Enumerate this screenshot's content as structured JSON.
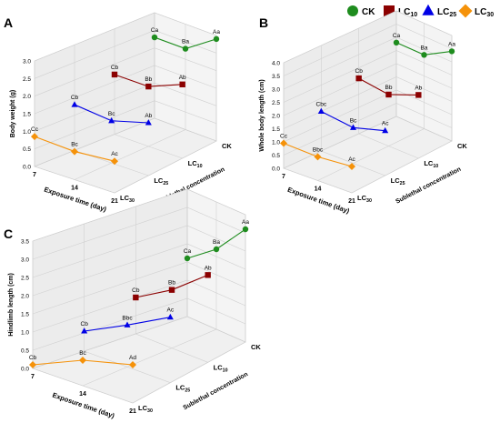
{
  "legend": {
    "items": [
      {
        "label": "CK",
        "color": "#1e8c1e",
        "marker": "circle"
      },
      {
        "label": "LC10",
        "color": "#8b0000",
        "marker": "square"
      },
      {
        "label": "LC25",
        "color": "#0000e6",
        "marker": "triangle"
      },
      {
        "label": "LC30",
        "color": "#f5920a",
        "marker": "diamond"
      }
    ]
  },
  "chart_data": [
    {
      "type": "line",
      "panel_label": "A",
      "title": "",
      "xlabel": "Exposure time (day)",
      "ylabel": "Body weight (g)",
      "depth_label": "Sublethal concentration",
      "x": [
        "7",
        "14",
        "21"
      ],
      "depth_categories": [
        "CK",
        "LC10",
        "LC25",
        "LC30"
      ],
      "ylim": [
        0,
        3.0
      ],
      "yticks": [
        "0.0",
        "0.5",
        "1.0",
        "1.5",
        "2.0",
        "2.5",
        "3.0"
      ],
      "series": [
        {
          "name": "CK",
          "values": [
            2.3,
            2.3,
            2.9
          ],
          "labels": [
            "Ca",
            "Ba",
            "Aa"
          ]
        },
        {
          "name": "LC10",
          "values": [
            1.7,
            1.7,
            2.1
          ],
          "labels": [
            "Cb",
            "Bb",
            "Ab"
          ]
        },
        {
          "name": "LC25",
          "values": [
            1.3,
            1.2,
            1.5
          ],
          "labels": [
            "Cb",
            "Bc",
            "Ab"
          ]
        },
        {
          "name": "LC30",
          "values": [
            0.85,
            0.8,
            0.9
          ],
          "labels": [
            "Cc",
            "Bc",
            "Ac"
          ]
        }
      ]
    },
    {
      "type": "line",
      "panel_label": "B",
      "title": "",
      "xlabel": "Exposure time (day)",
      "ylabel": "Whole body length (cm)",
      "depth_label": "Sublethal concentration",
      "x": [
        "7",
        "14",
        "21"
      ],
      "depth_categories": [
        "CK",
        "LC10",
        "LC25",
        "LC30"
      ],
      "ylim": [
        0,
        4.0
      ],
      "yticks": [
        "0.0",
        "0.5",
        "1.0",
        "1.5",
        "2.0",
        "2.5",
        "3.0",
        "3.5",
        "4.0"
      ],
      "series": [
        {
          "name": "CK",
          "values": [
            2.8,
            2.8,
            3.4
          ],
          "labels": [
            "Ca",
            "Ba",
            "Aa"
          ]
        },
        {
          "name": "LC10",
          "values": [
            2.1,
            1.95,
            2.4
          ],
          "labels": [
            "Cb",
            "Bb",
            "Ab"
          ]
        },
        {
          "name": "LC25",
          "values": [
            1.5,
            1.35,
            1.7
          ],
          "labels": [
            "Cbc",
            "Bc",
            "Ac"
          ]
        },
        {
          "name": "LC30",
          "values": [
            0.95,
            0.9,
            1.0
          ],
          "labels": [
            "Cc",
            "Bbc",
            "Ac"
          ]
        }
      ]
    },
    {
      "type": "line",
      "panel_label": "C",
      "title": "",
      "xlabel": "Exposure time (day)",
      "ylabel": "Hindlimb length (cm)",
      "depth_label": "Sublethal concentration",
      "x": [
        "7",
        "14",
        "21"
      ],
      "depth_categories": [
        "CK",
        "LC10",
        "LC25",
        "LC30"
      ],
      "ylim": [
        0,
        3.5
      ],
      "yticks": [
        "0.0",
        "0.5",
        "1.0",
        "1.5",
        "2.0",
        "2.5",
        "3.0",
        "3.5"
      ],
      "series": [
        {
          "name": "CK",
          "values": [
            1.6,
            2.2,
            3.1
          ],
          "labels": [
            "Ca",
            "Ba",
            "Aa"
          ]
        },
        {
          "name": "LC10",
          "values": [
            1.0,
            1.6,
            2.4
          ],
          "labels": [
            "Cb",
            "Bb",
            "Ab"
          ]
        },
        {
          "name": "LC25",
          "values": [
            0.55,
            1.15,
            1.8
          ],
          "labels": [
            "Cb",
            "Bbc",
            "Ac"
          ]
        },
        {
          "name": "LC30",
          "values": [
            0.1,
            0.7,
            1.05
          ],
          "labels": [
            "Cb",
            "Bc",
            "Ad"
          ]
        }
      ]
    }
  ]
}
